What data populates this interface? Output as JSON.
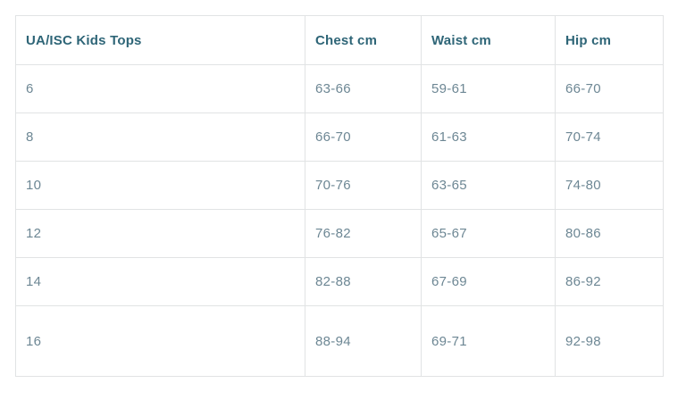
{
  "colors": {
    "header_text": "#2e6577",
    "body_text": "#6d8794",
    "border": "#e1e3e4",
    "background": "#ffffff"
  },
  "chart_data": {
    "type": "table",
    "title": "UA/ISC Kids Tops",
    "columns": [
      "UA/ISC Kids Tops",
      "Chest cm",
      "Waist cm",
      "Hip cm"
    ],
    "rows": [
      [
        "6",
        "63-66",
        "59-61",
        "66-70"
      ],
      [
        "8",
        "66-70",
        "61-63",
        "70-74"
      ],
      [
        "10",
        "70-76",
        "63-65",
        "74-80"
      ],
      [
        "12",
        "76-82",
        "65-67",
        "80-86"
      ],
      [
        "14",
        "82-88",
        "67-69",
        "86-92"
      ],
      [
        "16",
        "88-94",
        "69-71",
        "92-98"
      ]
    ]
  }
}
